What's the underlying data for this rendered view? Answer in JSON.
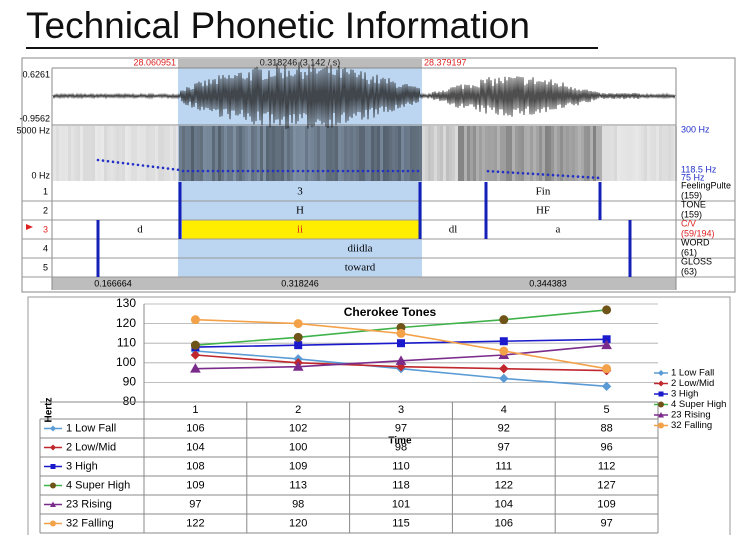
{
  "title": "Technical Phonetic Information",
  "praat": {
    "time_start": "28.060951",
    "selection": "0.318246 (3.142 / s)",
    "time_end": "28.379197",
    "amp_max": "0.6261",
    "amp_min": "-0.9562",
    "freq_max": "5000 Hz",
    "freq_min": "0 Hz",
    "pitch_max": "300 Hz",
    "pitch_mid": "118.5 Hz",
    "pitch_min": "75 Hz",
    "tiers": [
      {
        "number": "1",
        "name": "FeelingPulte",
        "count": "(159)",
        "intervals": [
          "3",
          "Fin"
        ]
      },
      {
        "number": "2",
        "name": "TONE",
        "count": "(159)",
        "intervals": [
          "H",
          "HF"
        ]
      },
      {
        "number": "3",
        "name": "C/V",
        "count": "(59/194)",
        "intervals": [
          "d",
          "ii",
          "dl",
          "a"
        ]
      },
      {
        "number": "4",
        "name": "WORD",
        "count": "(61)",
        "intervals": [
          "diidla"
        ]
      },
      {
        "number": "5",
        "name": "GLOSS",
        "count": "(63)",
        "intervals": [
          "toward"
        ]
      }
    ],
    "bottom_times": [
      "0.166664",
      "0.318246",
      "0.344383"
    ]
  },
  "chart_data": {
    "type": "line",
    "title": "Cherokee Tones",
    "x_label": "Time",
    "y_label": "Hertz",
    "categories": [
      "1",
      "2",
      "3",
      "4",
      "5"
    ],
    "ylim": [
      80,
      130
    ],
    "yticks": [
      80,
      90,
      100,
      110,
      120,
      130
    ],
    "grid": true,
    "legend": "right",
    "series": [
      {
        "name": "1 Low Fall",
        "color": "#5b9bd5",
        "marker": "diamond",
        "values": [
          106,
          102,
          97,
          92,
          88
        ]
      },
      {
        "name": "2 Low/Mid",
        "color": "#c0282d",
        "marker": "diamond",
        "values": [
          104,
          100,
          98,
          97,
          96
        ]
      },
      {
        "name": "3 High",
        "color": "#1a1acc",
        "marker": "square",
        "values": [
          108,
          109,
          110,
          111,
          112
        ]
      },
      {
        "name": "4 Super High",
        "color": "#3fb34a",
        "marker_color": "#6e5418",
        "marker": "circle",
        "values": [
          109,
          113,
          118,
          122,
          127
        ]
      },
      {
        "name": "23 Rising",
        "color": "#7b2c8b",
        "marker": "triangle",
        "values": [
          97,
          98,
          101,
          104,
          109
        ]
      },
      {
        "name": "32 Falling",
        "color": "#f4a24a",
        "marker": "circle",
        "values": [
          122,
          120,
          115,
          106,
          97
        ]
      }
    ]
  }
}
